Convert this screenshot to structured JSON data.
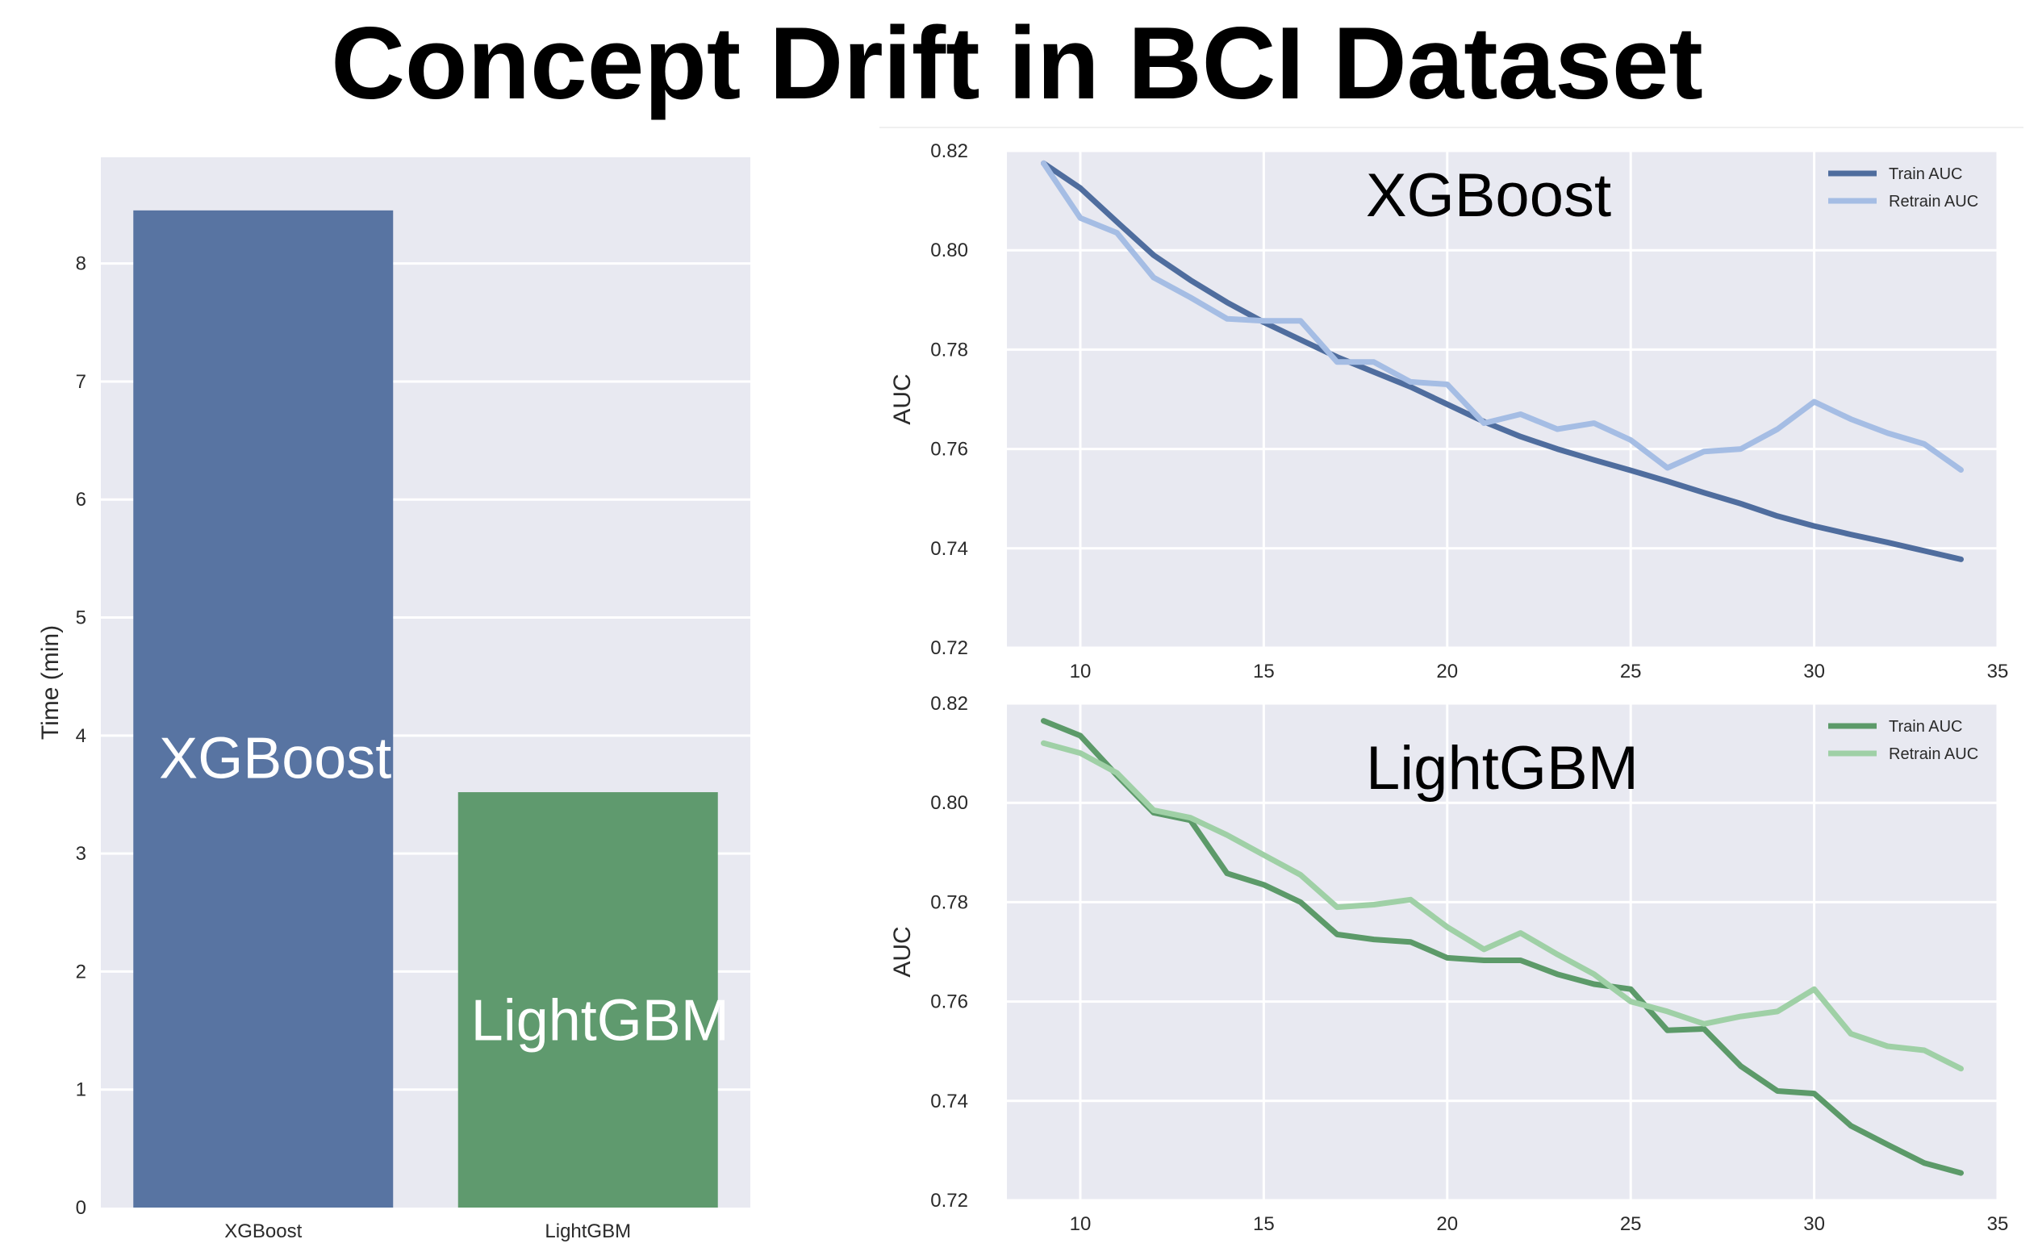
{
  "title": "Concept Drift in BCI Dataset",
  "colors": {
    "panel_bg": "#e8e9f1",
    "grid": "#ffffff",
    "tick_text": "#2a2a2a",
    "xgb_bar": "#5874a2",
    "lgb_bar": "#5f9a6e",
    "xgb_train": "#4f6d9e",
    "xgb_retrain": "#a5bde4",
    "lgb_train": "#5c9a69",
    "lgb_retrain": "#9fd0a6",
    "bar_label": "#ffffff"
  },
  "chart_data": [
    {
      "type": "bar",
      "title": "",
      "xlabel": "",
      "ylabel": "Time (min)",
      "ylim": [
        0,
        8.9
      ],
      "yticks": [
        0,
        1,
        2,
        3,
        4,
        5,
        6,
        7,
        8
      ],
      "categories": [
        "XGBoost",
        "LightGBM"
      ],
      "values": [
        8.45,
        3.52
      ],
      "bar_labels": [
        "XGBoost",
        "LightGBM"
      ],
      "grid": true,
      "legend": "none"
    },
    {
      "type": "line",
      "title": "XGBoost",
      "xlabel": "",
      "ylabel": "AUC",
      "xlim": [
        8,
        35
      ],
      "ylim": [
        0.72,
        0.82
      ],
      "xticks": [
        10,
        15,
        20,
        25,
        30,
        35
      ],
      "yticks": [
        0.72,
        0.74,
        0.76,
        0.78,
        0.8,
        0.82
      ],
      "x": [
        9,
        10,
        11,
        12,
        13,
        14,
        15,
        16,
        17,
        18,
        19,
        20,
        21,
        22,
        23,
        24,
        25,
        26,
        27,
        28,
        29,
        30,
        31,
        32,
        33,
        34
      ],
      "series": [
        {
          "name": "Train AUC",
          "values": [
            0.8175,
            0.8125,
            0.8057,
            0.799,
            0.794,
            0.7895,
            0.7855,
            0.782,
            0.7785,
            0.7755,
            0.7725,
            0.769,
            0.7655,
            0.7625,
            0.76,
            0.7578,
            0.7557,
            0.7535,
            0.7512,
            0.749,
            0.7465,
            0.7445,
            0.7428,
            0.7412,
            0.7395,
            0.7378
          ]
        },
        {
          "name": "Retrain AUC",
          "values": [
            0.8175,
            0.8065,
            0.8035,
            0.7945,
            0.7905,
            0.7862,
            0.7858,
            0.7858,
            0.7775,
            0.7775,
            0.7735,
            0.773,
            0.7652,
            0.767,
            0.764,
            0.7652,
            0.7618,
            0.7562,
            0.7595,
            0.76,
            0.764,
            0.7695,
            0.766,
            0.7632,
            0.761,
            0.7558
          ]
        }
      ],
      "grid": true,
      "legend": "top-right"
    },
    {
      "type": "line",
      "title": "LightGBM",
      "xlabel": "",
      "ylabel": "AUC",
      "xlim": [
        8,
        35
      ],
      "ylim": [
        0.72,
        0.82
      ],
      "xticks": [
        10,
        15,
        20,
        25,
        30,
        35
      ],
      "yticks": [
        0.72,
        0.74,
        0.76,
        0.78,
        0.8,
        0.82
      ],
      "x": [
        9,
        10,
        11,
        12,
        13,
        14,
        15,
        16,
        17,
        18,
        19,
        20,
        21,
        22,
        23,
        24,
        25,
        26,
        27,
        28,
        29,
        30,
        31,
        32,
        33,
        34
      ],
      "series": [
        {
          "name": "Train AUC",
          "values": [
            0.8165,
            0.8135,
            0.8055,
            0.798,
            0.7965,
            0.7858,
            0.7835,
            0.78,
            0.7735,
            0.7725,
            0.772,
            0.7688,
            0.7683,
            0.7683,
            0.7655,
            0.7635,
            0.7625,
            0.7542,
            0.7545,
            0.747,
            0.742,
            0.7415,
            0.735,
            0.7312,
            0.7275,
            0.7255
          ]
        },
        {
          "name": "Retrain AUC",
          "values": [
            0.812,
            0.81,
            0.806,
            0.7985,
            0.797,
            0.7935,
            0.7895,
            0.7855,
            0.779,
            0.7795,
            0.7805,
            0.775,
            0.7705,
            0.7738,
            0.7695,
            0.7655,
            0.76,
            0.758,
            0.7555,
            0.757,
            0.758,
            0.7625,
            0.7535,
            0.751,
            0.7502,
            0.7465
          ]
        }
      ],
      "grid": true,
      "legend": "top-right"
    }
  ]
}
